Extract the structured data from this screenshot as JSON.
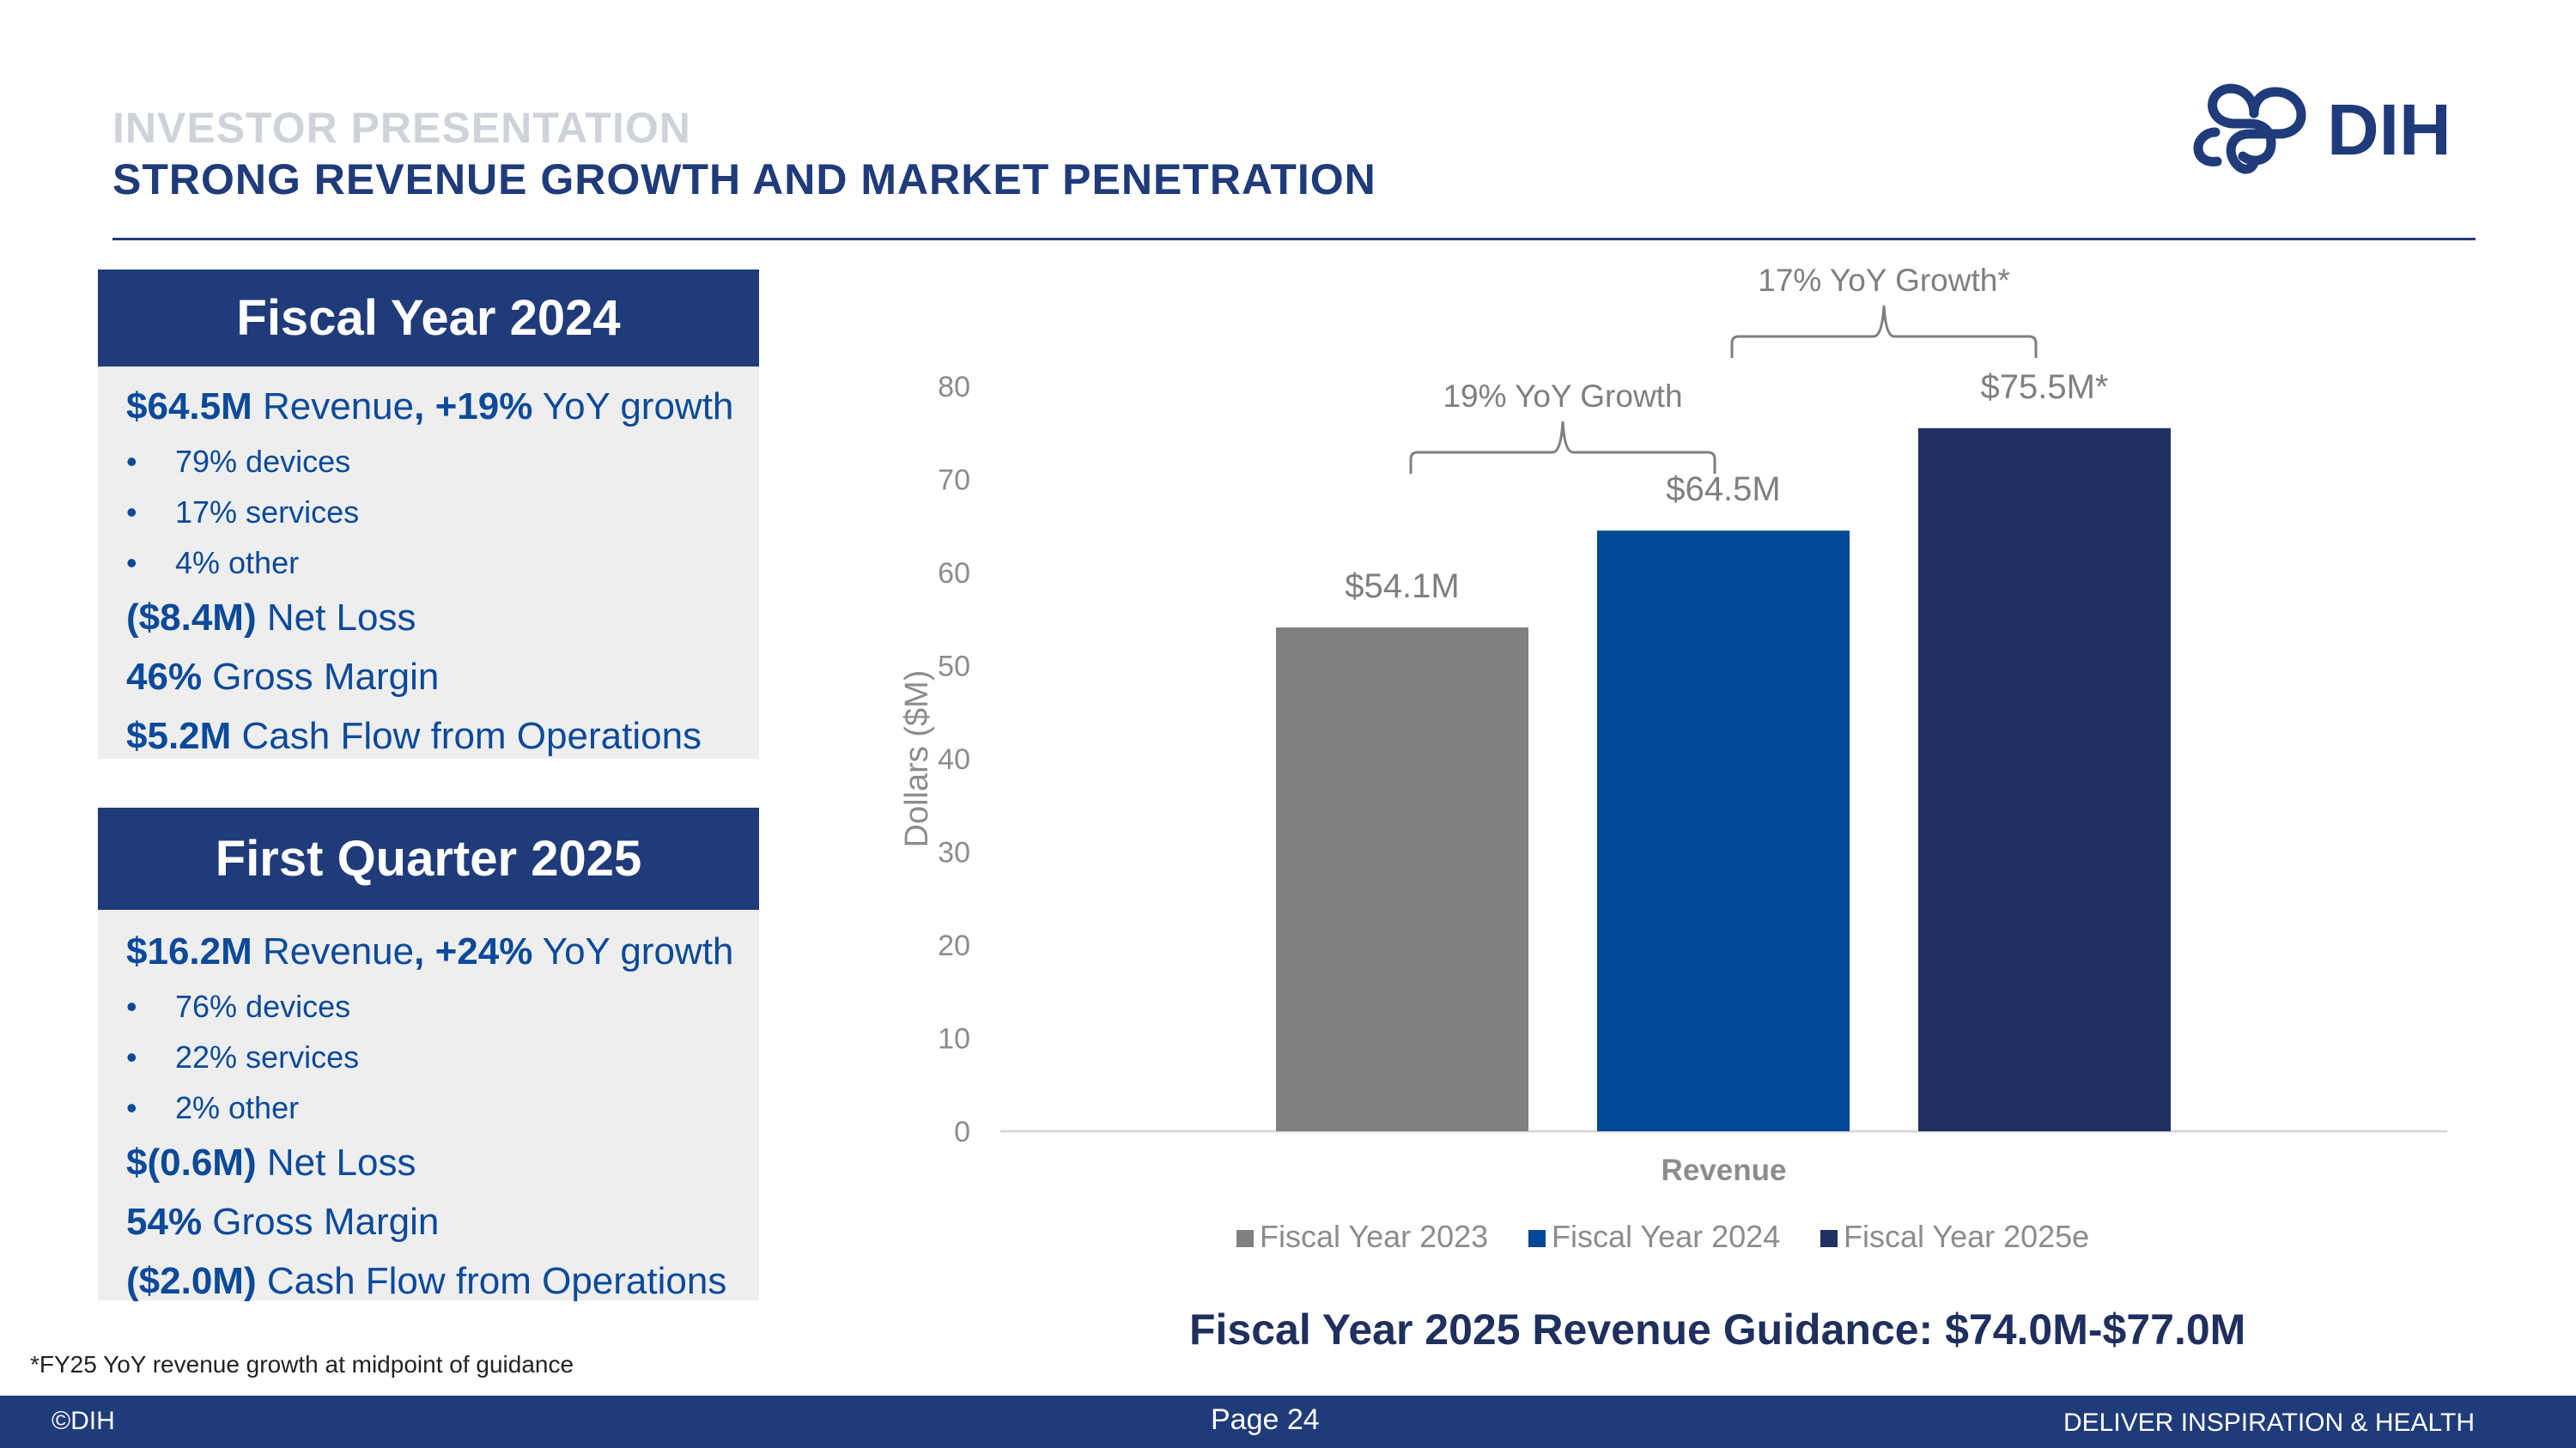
{
  "header": {
    "kicker": "INVESTOR PRESENTATION",
    "title": "STRONG REVENUE GROWTH AND MARKET PENETRATION",
    "logo_text": "DIH",
    "brand_color": "#1f3b7a"
  },
  "fy2024": {
    "heading": "Fiscal Year 2024",
    "revenue_value": "$64.5M",
    "revenue_text": " Revenue",
    "growth_value": ", +19%",
    "growth_text": " YoY growth",
    "bullets": [
      "79% devices",
      "17% services",
      "4% other"
    ],
    "net_loss_value": "($8.4M)",
    "net_loss_text": " Net Loss",
    "margin_value": "46%",
    "margin_text": " Gross Margin",
    "cash_value": "$5.2M",
    "cash_text": " Cash Flow from Operations"
  },
  "q1_2025": {
    "heading": "First Quarter 2025",
    "revenue_value": "$16.2M",
    "revenue_text": " Revenue",
    "growth_value": ", +24%",
    "growth_text": " YoY growth",
    "bullets": [
      "76% devices",
      "22% services",
      "2% other"
    ],
    "net_loss_value": "$(0.6M)",
    "net_loss_text": " Net Loss",
    "margin_value": "54%",
    "margin_text": " Gross Margin",
    "cash_value": "($2.0M)",
    "cash_text": " Cash Flow from Operations"
  },
  "chart_data": {
    "type": "bar",
    "categories": [
      "Revenue"
    ],
    "series": [
      {
        "name": "Fiscal Year 2023",
        "values": [
          54.1
        ],
        "label": "$54.1M",
        "color": "#808080"
      },
      {
        "name": "Fiscal Year 2024",
        "values": [
          64.5
        ],
        "label": "$64.5M",
        "color": "#004795"
      },
      {
        "name": "Fiscal Year 2025e",
        "values": [
          75.5
        ],
        "label": "$75.5M*",
        "color": "#203060"
      }
    ],
    "title": "",
    "xlabel": "Revenue",
    "ylabel": "Dollars ($M)",
    "ylim": [
      0,
      80
    ],
    "yticks": [
      0,
      10,
      20,
      30,
      40,
      50,
      60,
      70,
      80
    ],
    "legend_position": "bottom",
    "annotations": [
      {
        "text": "19% YoY Growth",
        "from_series": 0,
        "to_series": 1
      },
      {
        "text": "17% YoY Growth*",
        "from_series": 1,
        "to_series": 2
      }
    ]
  },
  "guidance": "Fiscal Year 2025 Revenue Guidance: $74.0M-$77.0M",
  "footnote": "*FY25 YoY revenue growth at midpoint of guidance",
  "footer": {
    "copyright": "©DIH",
    "page": "Page 24",
    "tagline": "DELIVER INSPIRATION & HEALTH"
  }
}
